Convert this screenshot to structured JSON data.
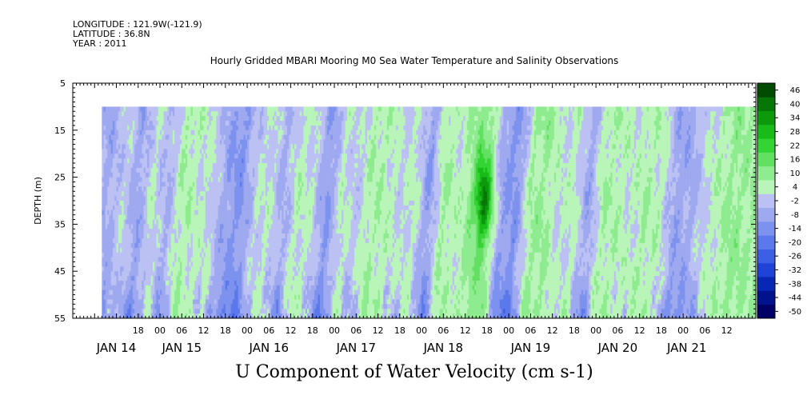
{
  "header": {
    "longitude": "LONGITUDE : 121.9W(-121.9)",
    "latitude": "LATITUDE : 36.8N",
    "year": "YEAR : 2011"
  },
  "title": "Hourly Gridded MBARI Mooring M0 Sea Water Temperature and Salinity Observations",
  "footer": "U Component of Water Velocity (cm s-1)",
  "chart_data": {
    "type": "heatmap",
    "ylabel": "DEPTH (m)",
    "y_axis": {
      "range": [
        5,
        55
      ],
      "ticks": [
        5,
        15,
        25,
        35,
        45,
        55
      ],
      "inverted": true
    },
    "x_axis": {
      "range_hours": [
        0,
        188
      ],
      "hour_ticks": [
        {
          "t": 18,
          "label": "18"
        },
        {
          "t": 24,
          "label": "00"
        },
        {
          "t": 30,
          "label": "06"
        },
        {
          "t": 36,
          "label": "12"
        },
        {
          "t": 42,
          "label": "18"
        },
        {
          "t": 48,
          "label": "00"
        },
        {
          "t": 54,
          "label": "06"
        },
        {
          "t": 60,
          "label": "12"
        },
        {
          "t": 66,
          "label": "18"
        },
        {
          "t": 72,
          "label": "00"
        },
        {
          "t": 78,
          "label": "06"
        },
        {
          "t": 84,
          "label": "12"
        },
        {
          "t": 90,
          "label": "18"
        },
        {
          "t": 96,
          "label": "00"
        },
        {
          "t": 102,
          "label": "06"
        },
        {
          "t": 108,
          "label": "12"
        },
        {
          "t": 114,
          "label": "18"
        },
        {
          "t": 120,
          "label": "00"
        },
        {
          "t": 126,
          "label": "06"
        },
        {
          "t": 132,
          "label": "12"
        },
        {
          "t": 138,
          "label": "18"
        },
        {
          "t": 144,
          "label": "00"
        },
        {
          "t": 150,
          "label": "06"
        },
        {
          "t": 156,
          "label": "12"
        },
        {
          "t": 162,
          "label": "18"
        },
        {
          "t": 168,
          "label": "00"
        },
        {
          "t": 174,
          "label": "06"
        },
        {
          "t": 180,
          "label": "12"
        }
      ],
      "date_labels": [
        {
          "t": 12,
          "label": "JAN 14"
        },
        {
          "t": 30,
          "label": "JAN 15"
        },
        {
          "t": 54,
          "label": "JAN 16"
        },
        {
          "t": 78,
          "label": "JAN 17"
        },
        {
          "t": 102,
          "label": "JAN 18"
        },
        {
          "t": 126,
          "label": "JAN 19"
        },
        {
          "t": 150,
          "label": "JAN 20"
        },
        {
          "t": 169,
          "label": "JAN 21"
        }
      ]
    },
    "data_extent": {
      "time_hours": [
        8,
        188
      ],
      "depth": [
        10,
        55
      ]
    },
    "colorbar": {
      "levels": [
        -50,
        -44,
        -38,
        -32,
        -26,
        -20,
        -14,
        -8,
        -2,
        4,
        10,
        16,
        22,
        28,
        34,
        40,
        46
      ],
      "colors": [
        "#000066",
        "#00128c",
        "#0827b4",
        "#1f43d6",
        "#3c5fe6",
        "#5b78ec",
        "#7d92ee",
        "#9ea9f0",
        "#bcc1f3",
        "#b9f5b9",
        "#8feb8f",
        "#62e062",
        "#33d433",
        "#18bb18",
        "#0c9a0c",
        "#067706",
        "#024c02"
      ]
    },
    "bands": [
      {
        "t": 10,
        "v": -4
      },
      {
        "t": 14,
        "v": 3
      },
      {
        "t": 18,
        "v": -6
      },
      {
        "t": 22,
        "v": 5
      },
      {
        "t": 26,
        "v": -3
      },
      {
        "t": 30,
        "v": 9
      },
      {
        "t": 34,
        "v": 6
      },
      {
        "t": 38,
        "v": 4
      },
      {
        "t": 42,
        "v": -6
      },
      {
        "t": 46,
        "v": -10
      },
      {
        "t": 50,
        "v": 2
      },
      {
        "t": 54,
        "v": 5
      },
      {
        "t": 58,
        "v": -4
      },
      {
        "t": 62,
        "v": 7
      },
      {
        "t": 66,
        "v": 4
      },
      {
        "t": 70,
        "v": -9
      },
      {
        "t": 74,
        "v": 6
      },
      {
        "t": 78,
        "v": 1
      },
      {
        "t": 82,
        "v": 9
      },
      {
        "t": 86,
        "v": 8
      },
      {
        "t": 90,
        "v": 3
      },
      {
        "t": 94,
        "v": 6
      },
      {
        "t": 98,
        "v": -8
      },
      {
        "t": 102,
        "v": 10
      },
      {
        "t": 106,
        "v": 6
      },
      {
        "t": 110,
        "v": 12
      },
      {
        "t": 114,
        "v": 14
      },
      {
        "t": 118,
        "v": -6
      },
      {
        "t": 122,
        "v": -10
      },
      {
        "t": 126,
        "v": 10
      },
      {
        "t": 130,
        "v": 11
      },
      {
        "t": 134,
        "v": 4
      },
      {
        "t": 138,
        "v": 7
      },
      {
        "t": 142,
        "v": -6
      },
      {
        "t": 146,
        "v": 9
      },
      {
        "t": 150,
        "v": 8
      },
      {
        "t": 154,
        "v": 5
      },
      {
        "t": 158,
        "v": 9
      },
      {
        "t": 162,
        "v": 6
      },
      {
        "t": 166,
        "v": -6
      },
      {
        "t": 170,
        "v": -4
      },
      {
        "t": 174,
        "v": 3
      },
      {
        "t": 178,
        "v": 8
      },
      {
        "t": 182,
        "v": 12
      },
      {
        "t": 186,
        "v": 10
      }
    ],
    "max_feature": {
      "t": 113,
      "depth": 30,
      "v": 40
    }
  }
}
